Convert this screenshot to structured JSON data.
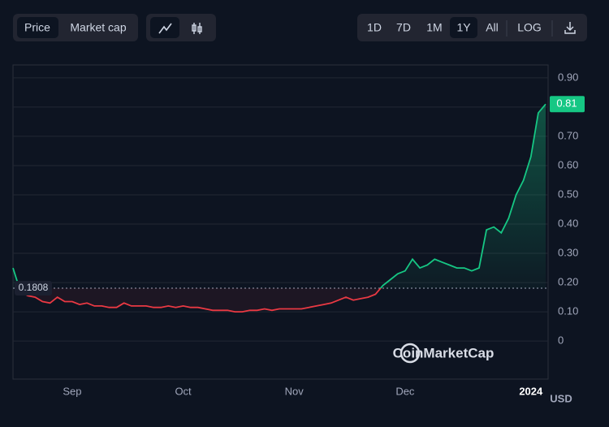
{
  "controls": {
    "metrics": [
      "Price",
      "Market cap"
    ],
    "ranges": [
      "1D",
      "7D",
      "1M",
      "1Y",
      "All",
      "LOG"
    ]
  },
  "chart_data": {
    "type": "line",
    "categories": [
      null,
      null,
      null,
      null,
      null,
      null,
      null,
      null,
      "Sep",
      null,
      null,
      null,
      null,
      null,
      null,
      null,
      null,
      null,
      null,
      null,
      null,
      null,
      null,
      "Oct",
      null,
      null,
      null,
      null,
      null,
      null,
      null,
      null,
      null,
      null,
      null,
      null,
      null,
      null,
      "Nov",
      null,
      null,
      null,
      null,
      null,
      null,
      null,
      null,
      null,
      null,
      null,
      null,
      null,
      null,
      "Dec",
      null,
      null,
      null,
      null,
      null,
      null,
      null,
      null,
      null,
      null,
      null,
      null,
      null,
      null,
      null,
      null,
      "2024",
      null,
      null
    ],
    "series": [
      {
        "name": "Price",
        "values": [
          0.25,
          0.17,
          0.155,
          0.15,
          0.135,
          0.13,
          0.15,
          0.135,
          0.135,
          0.125,
          0.13,
          0.12,
          0.12,
          0.115,
          0.115,
          0.13,
          0.12,
          0.12,
          0.12,
          0.115,
          0.115,
          0.12,
          0.115,
          0.12,
          0.115,
          0.115,
          0.11,
          0.105,
          0.105,
          0.105,
          0.1,
          0.1,
          0.105,
          0.105,
          0.11,
          0.105,
          0.11,
          0.11,
          0.11,
          0.11,
          0.115,
          0.12,
          0.125,
          0.13,
          0.14,
          0.15,
          0.14,
          0.145,
          0.15,
          0.16,
          0.19,
          0.21,
          0.23,
          0.24,
          0.28,
          0.25,
          0.26,
          0.28,
          0.27,
          0.26,
          0.25,
          0.25,
          0.24,
          0.25,
          0.38,
          0.39,
          0.37,
          0.42,
          0.5,
          0.55,
          0.63,
          0.78,
          0.81
        ]
      }
    ],
    "baseline": 0.1808,
    "up_color": "#16c784",
    "down_color": "#ea3943",
    "ylim": [
      -0.13,
      0.944
    ],
    "yticks": [
      0,
      {
        "value": 0.1,
        "label": "0.10"
      },
      {
        "value": 0.2,
        "label": "0.20"
      },
      {
        "value": 0.3,
        "label": "0.30"
      },
      {
        "value": 0.4,
        "label": "0.40"
      },
      {
        "value": 0.5,
        "label": "0.50"
      },
      {
        "value": 0.6,
        "label": "0.60"
      },
      {
        "value": 0.7,
        "label": "0.70"
      },
      {
        "value": 0.8,
        "label": "0.80"
      },
      {
        "value": 0.9,
        "label": "0.90"
      }
    ],
    "grid": true,
    "watermark": "CoinMarketCap",
    "currency": "USD"
  }
}
